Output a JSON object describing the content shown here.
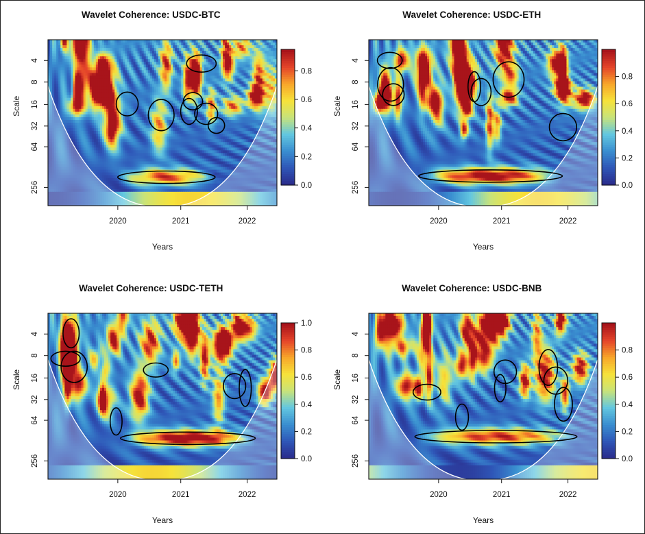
{
  "figure": {
    "palette": [
      "#2a2c8c",
      "#2f57b8",
      "#3a8fd0",
      "#63c7e0",
      "#c8e37a",
      "#f6e23a",
      "#f8a72a",
      "#e5452a",
      "#a8141b"
    ]
  },
  "chart_data": [
    {
      "type": "heatmap",
      "title": "Wavelet Coherence: USDC-BTC",
      "xlabel": "Years",
      "ylabel": "Scale",
      "x_ticks": [
        "2020",
        "2021",
        "2022"
      ],
      "y_ticks": [
        "4",
        "8",
        "16",
        "32",
        "64",
        "256"
      ],
      "colorbar_ticks": [
        "0.0",
        "0.2",
        "0.4",
        "0.6",
        "0.8"
      ],
      "colorbar_range": [
        0,
        0.95
      ],
      "seed": 11
    },
    {
      "type": "heatmap",
      "title": "Wavelet Coherence: USDC-ETH",
      "xlabel": "Years",
      "ylabel": "Scale",
      "x_ticks": [
        "2020",
        "2021",
        "2022"
      ],
      "y_ticks": [
        "4",
        "8",
        "16",
        "32",
        "64",
        "256"
      ],
      "colorbar_ticks": [
        "0.0",
        "0.2",
        "0.4",
        "0.6",
        "0.8"
      ],
      "colorbar_range": [
        0,
        1.0
      ],
      "seed": 23
    },
    {
      "type": "heatmap",
      "title": "Wavelet Coherence: USDC-TETH",
      "xlabel": "Years",
      "ylabel": "Scale",
      "x_ticks": [
        "2020",
        "2021",
        "2022"
      ],
      "y_ticks": [
        "4",
        "8",
        "16",
        "32",
        "64",
        "256"
      ],
      "colorbar_ticks": [
        "0.0",
        "0.2",
        "0.4",
        "0.6",
        "0.8",
        "1.0"
      ],
      "colorbar_range": [
        0,
        1.0
      ],
      "seed": 37
    },
    {
      "type": "heatmap",
      "title": "Wavelet Coherence: USDC-BNB",
      "xlabel": "Years",
      "ylabel": "Scale",
      "x_ticks": [
        "2020",
        "2021",
        "2022"
      ],
      "y_ticks": [
        "4",
        "8",
        "16",
        "32",
        "64",
        "256"
      ],
      "colorbar_ticks": [
        "0.0",
        "0.2",
        "0.4",
        "0.6",
        "0.8"
      ],
      "colorbar_range": [
        0,
        1.0
      ],
      "seed": 53
    }
  ]
}
